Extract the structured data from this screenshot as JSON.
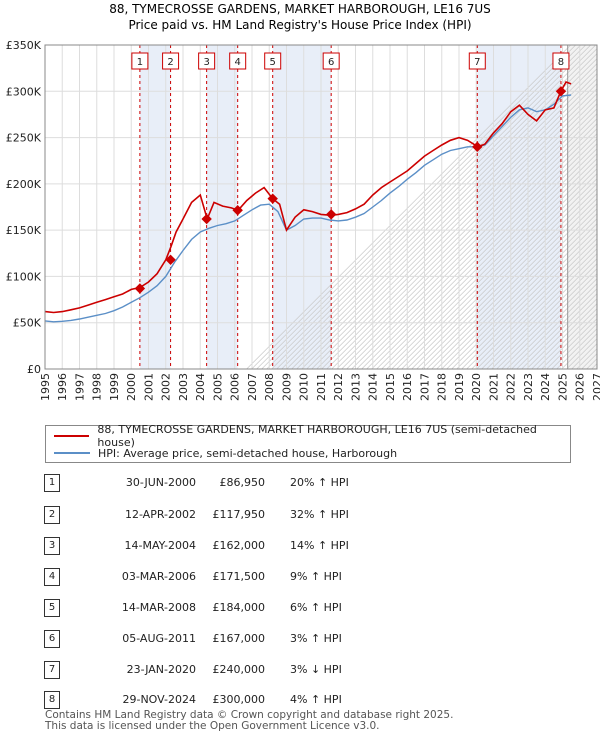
{
  "chart_data": {
    "type": "line",
    "title": "88, TYMECROSSE GARDENS, MARKET HARBOROUGH, LE16 7US",
    "subtitle": "Price paid vs. HM Land Registry's House Price Index (HPI)",
    "xlim": [
      1995,
      2027
    ],
    "ylim": [
      0,
      350000
    ],
    "x_ticks": [
      1995,
      1996,
      1997,
      1998,
      1999,
      2000,
      2001,
      2002,
      2003,
      2004,
      2005,
      2006,
      2007,
      2008,
      2009,
      2010,
      2011,
      2012,
      2013,
      2014,
      2015,
      2016,
      2017,
      2018,
      2019,
      2020,
      2021,
      2022,
      2023,
      2024,
      2025,
      2026,
      2027
    ],
    "y_ticks": [
      0,
      50000,
      100000,
      150000,
      200000,
      250000,
      300000,
      350000
    ],
    "y_tick_labels": [
      "£0",
      "£50K",
      "£100K",
      "£150K",
      "£200K",
      "£250K",
      "£300K",
      "£350K"
    ],
    "forecast_start": 2025.3,
    "series": [
      {
        "name": "88, TYMECROSSE GARDENS, MARKET HARBOROUGH, LE16 7US (semi-detached house)",
        "color": "#cc0000",
        "x": [
          1995,
          1995.5,
          1996,
          1996.5,
          1997,
          1997.5,
          1998,
          1998.5,
          1999,
          1999.5,
          2000,
          2000.5,
          2001,
          2001.5,
          2002,
          2002.3,
          2002.6,
          2003,
          2003.5,
          2004,
          2004.4,
          2004.8,
          2005.3,
          2005.8,
          2006.2,
          2006.7,
          2007.2,
          2007.7,
          2008.2,
          2008.6,
          2009,
          2009.5,
          2010,
          2010.5,
          2011,
          2011.6,
          2012,
          2012.5,
          2013,
          2013.5,
          2014,
          2014.5,
          2015,
          2015.5,
          2016,
          2016.5,
          2017,
          2017.5,
          2018,
          2018.5,
          2019,
          2019.5,
          2020.1,
          2020.5,
          2021,
          2021.5,
          2022,
          2022.5,
          2023,
          2023.5,
          2024,
          2024.5,
          2024.9,
          2025.2,
          2025.5
        ],
        "y": [
          62000,
          61000,
          62000,
          64000,
          66000,
          69000,
          72000,
          75000,
          78000,
          81000,
          86000,
          88000,
          94000,
          103000,
          117950,
          132000,
          148000,
          162000,
          180000,
          188000,
          162000,
          180000,
          176000,
          174000,
          171500,
          182000,
          190000,
          196000,
          184000,
          178000,
          150000,
          164000,
          172000,
          170000,
          167000,
          166000,
          167000,
          169000,
          173000,
          178000,
          188000,
          196000,
          202000,
          208000,
          214000,
          222000,
          230000,
          236000,
          242000,
          247000,
          250000,
          247000,
          240000,
          243000,
          255000,
          265000,
          278000,
          285000,
          275000,
          268000,
          280000,
          282000,
          300000,
          310000,
          308000
        ]
      },
      {
        "name": "HPI: Average price, semi-detached house, Harborough",
        "color": "#5b8fc7",
        "x": [
          1995,
          1995.5,
          1996,
          1996.5,
          1997,
          1997.5,
          1998,
          1998.5,
          1999,
          1999.5,
          2000,
          2000.5,
          2001,
          2001.5,
          2002,
          2002.5,
          2003,
          2003.5,
          2004,
          2004.5,
          2005,
          2005.5,
          2006,
          2006.5,
          2007,
          2007.5,
          2008,
          2008.5,
          2009,
          2009.5,
          2010,
          2010.5,
          2011,
          2011.5,
          2012,
          2012.5,
          2013,
          2013.5,
          2014,
          2014.5,
          2015,
          2015.5,
          2016,
          2016.5,
          2017,
          2017.5,
          2018,
          2018.5,
          2019,
          2019.5,
          2020,
          2020.5,
          2021,
          2021.5,
          2022,
          2022.5,
          2023,
          2023.5,
          2024,
          2024.5,
          2025,
          2025.5
        ],
        "y": [
          52000,
          51000,
          51500,
          52500,
          54000,
          56000,
          58000,
          60000,
          63000,
          67000,
          72000,
          77000,
          83000,
          90000,
          100000,
          115000,
          128000,
          140000,
          148000,
          152000,
          155000,
          157000,
          160000,
          166000,
          172000,
          177000,
          178000,
          170000,
          150000,
          155000,
          162000,
          163000,
          163000,
          161000,
          160000,
          161000,
          164000,
          168000,
          175000,
          182000,
          190000,
          197000,
          205000,
          212000,
          220000,
          226000,
          232000,
          236000,
          238000,
          240000,
          240000,
          242000,
          252000,
          262000,
          272000,
          280000,
          282000,
          278000,
          280000,
          286000,
          295000,
          296000
        ]
      }
    ],
    "sales": [
      {
        "num": "1",
        "x": 2000.5,
        "price": 86950,
        "date": "30-JUN-2000",
        "price_label": "£86,950",
        "hpi": "20% ↑ HPI"
      },
      {
        "num": "2",
        "x": 2002.28,
        "price": 117950,
        "date": "12-APR-2002",
        "price_label": "£117,950",
        "hpi": "32% ↑ HPI"
      },
      {
        "num": "3",
        "x": 2004.37,
        "price": 162000,
        "date": "14-MAY-2004",
        "price_label": "£162,000",
        "hpi": "14% ↑ HPI"
      },
      {
        "num": "4",
        "x": 2006.17,
        "price": 171500,
        "date": "03-MAR-2006",
        "price_label": "£171,500",
        "hpi": "9% ↑ HPI"
      },
      {
        "num": "5",
        "x": 2008.2,
        "price": 184000,
        "date": "14-MAR-2008",
        "price_label": "£184,000",
        "hpi": "6% ↑ HPI"
      },
      {
        "num": "6",
        "x": 2011.59,
        "price": 167000,
        "date": "05-AUG-2011",
        "price_label": "£167,000",
        "hpi": "3% ↑ HPI"
      },
      {
        "num": "7",
        "x": 2020.06,
        "price": 240000,
        "date": "23-JAN-2020",
        "price_label": "£240,000",
        "hpi": "3% ↓ HPI"
      },
      {
        "num": "8",
        "x": 2024.91,
        "price": 300000,
        "date": "29-NOV-2024",
        "price_label": "£300,000",
        "hpi": "4% ↑ HPI"
      }
    ],
    "shaded_spans": [
      [
        2000.5,
        2002.28
      ],
      [
        2004.37,
        2006.17
      ],
      [
        2008.2,
        2011.59
      ],
      [
        2020.06,
        2024.91
      ]
    ]
  },
  "legend": {
    "property_label": "88, TYMECROSSE GARDENS, MARKET HARBOROUGH, LE16 7US (semi-detached house)",
    "hpi_label": "HPI: Average price, semi-detached house, Harborough"
  },
  "footer": {
    "line1": "Contains HM Land Registry data © Crown copyright and database right 2025.",
    "line2": "This data is licensed under the Open Government Licence v3.0."
  }
}
